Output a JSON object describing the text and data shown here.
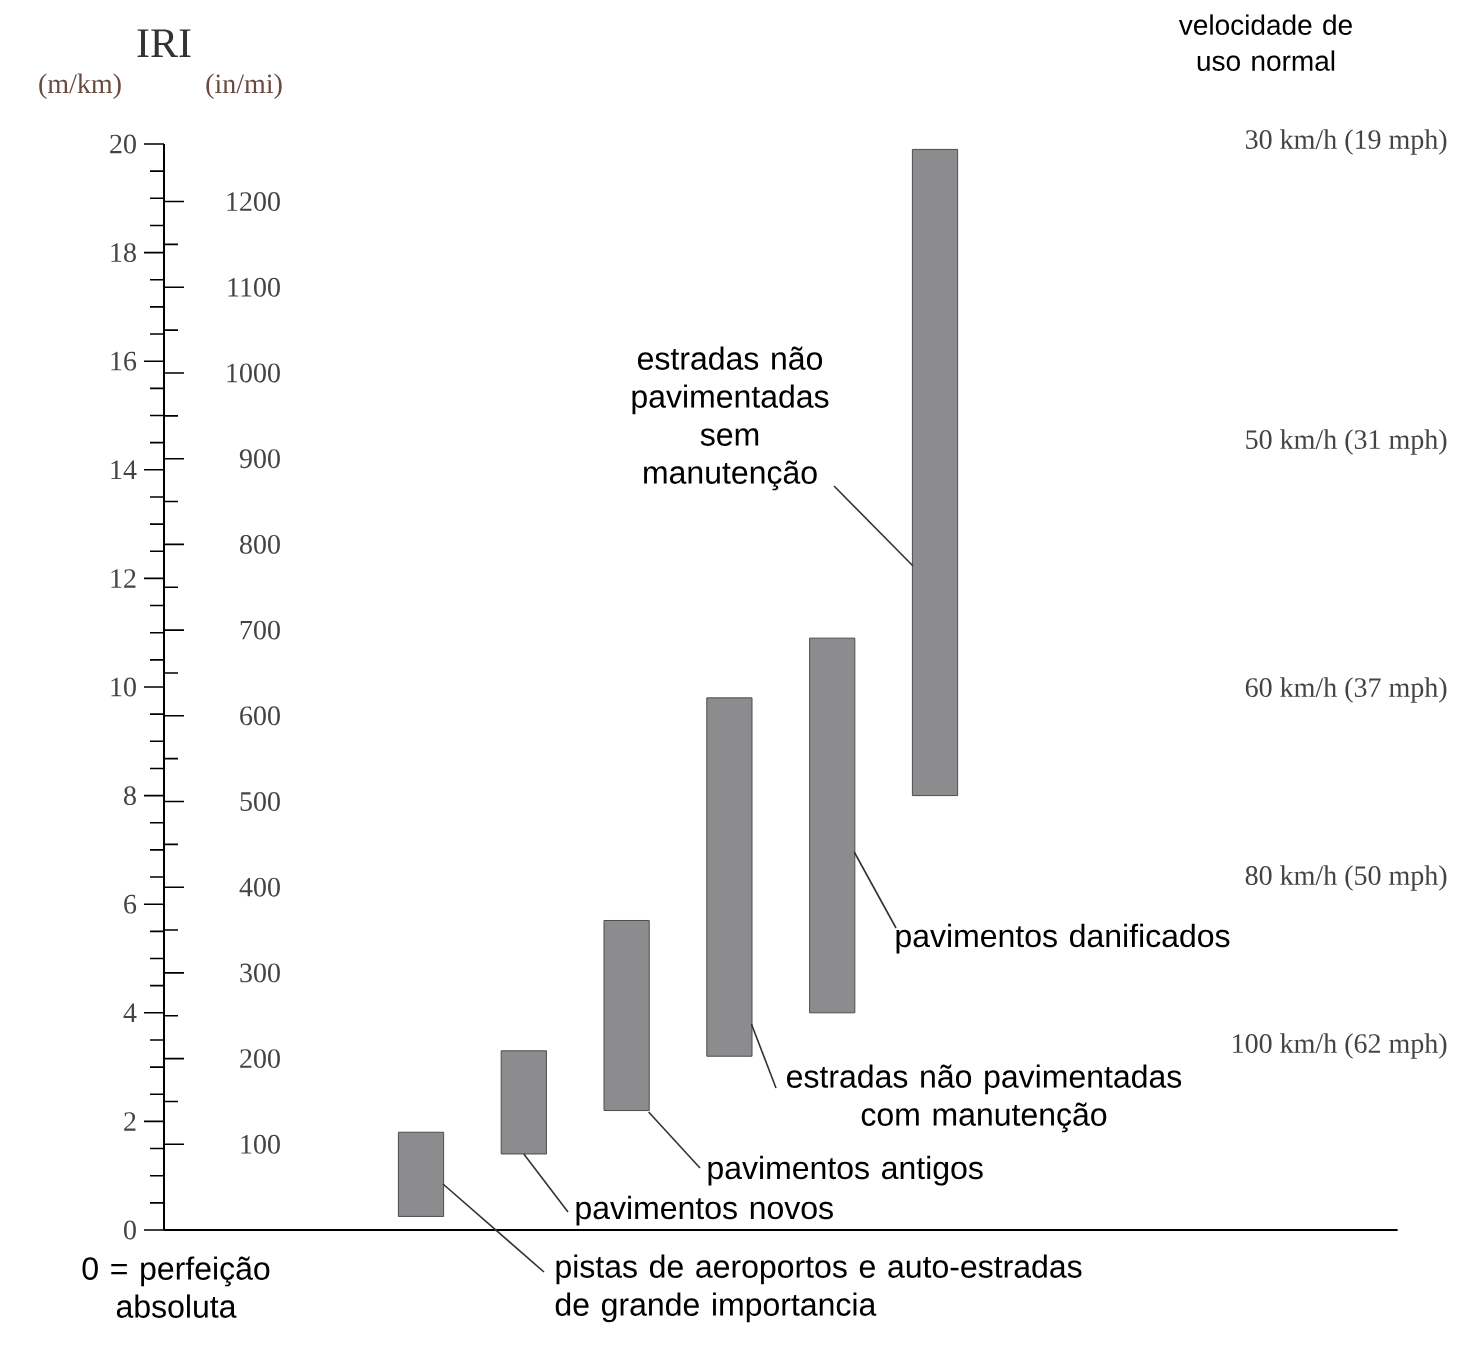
{
  "chart_data": {
    "type": "bar",
    "title": "IRI",
    "ylabel": "(m/km)",
    "y2label": "(in/mi)",
    "categories": [
      null,
      null,
      null,
      null,
      null,
      null,
      null,
      null,
      null,
      null,
      null,
      null
    ],
    "base": [
      null,
      null,
      0.25,
      1.4,
      2.2,
      3.2,
      4.0,
      8.0,
      null,
      null,
      null,
      null
    ],
    "values": [
      null,
      null,
      1.55,
      1.9,
      3.5,
      6.6,
      6.9,
      11.9,
      null,
      null,
      null,
      null
    ],
    "color": "#8c8c8e",
    "ylim": [
      0,
      20
    ],
    "yticks": [
      0,
      2,
      4,
      6,
      8,
      10,
      12,
      14,
      16,
      18,
      20
    ],
    "y2lim": [
      0,
      1267.2
    ],
    "y2ticks": [
      100,
      200,
      300,
      400,
      500,
      600,
      700,
      800,
      900,
      1000,
      1100,
      1200
    ],
    "annotations": [
      "velocidade de uso normal",
      "30 km/h (19 mph)",
      "50 km/h (31 mph)",
      "60 km/h (37 mph)",
      "80 km/h (50 mph)",
      "100 km/h (62 mph)",
      "0 = perfeição absoluta",
      "pistas de aeroportos e auto-estradas de grande importancia",
      "pavimentos novos",
      "pavimentos antigos",
      "estradas não pavimentadas com manutenção",
      "pavimentos danificados",
      "estradas não pavimentadas sem manutenção"
    ]
  }
}
